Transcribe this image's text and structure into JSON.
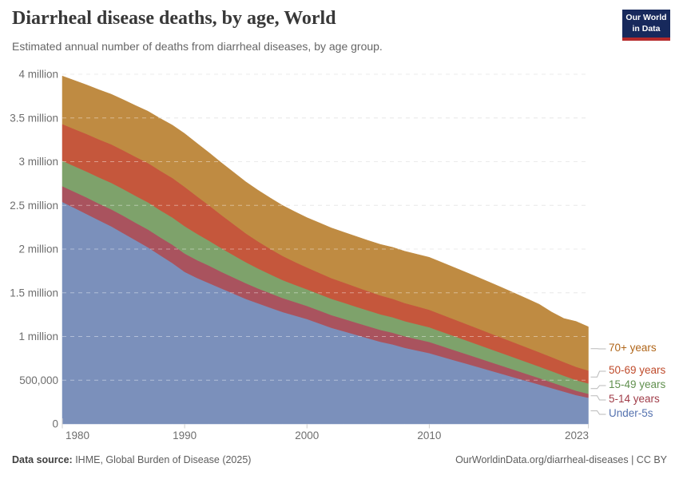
{
  "header": {
    "title": "Diarrheal disease deaths, by age, World",
    "subtitle": "Estimated annual number of deaths from diarrheal diseases, by age group.",
    "logo_line1": "Our World",
    "logo_line2": "in Data",
    "logo_bg_color": "#17295c",
    "logo_bar_color": "#b5292a"
  },
  "footer": {
    "source_label": "Data source:",
    "source_text": " IHME, Global Burden of Disease (2025)",
    "right_text": "OurWorldinData.org/diarrheal-diseases | CC BY"
  },
  "chart_data": {
    "type": "area",
    "stacked": true,
    "unit": "deaths per year (values in millions)",
    "ylim": [
      0,
      4
    ],
    "grid": "dashed-horizontal",
    "legend_position": "right",
    "x": [
      1980,
      1981,
      1982,
      1983,
      1984,
      1985,
      1986,
      1987,
      1988,
      1989,
      1990,
      1991,
      1992,
      1993,
      1994,
      1995,
      1996,
      1997,
      1998,
      1999,
      2000,
      2001,
      2002,
      2003,
      2004,
      2005,
      2006,
      2007,
      2008,
      2009,
      2010,
      2011,
      2012,
      2013,
      2014,
      2015,
      2016,
      2017,
      2018,
      2019,
      2020,
      2021,
      2022,
      2023
    ],
    "series": [
      {
        "name": "Under-5s",
        "color": "#7b90bb",
        "label_color": "#5572af",
        "values": [
          2.54,
          2.47,
          2.4,
          2.33,
          2.26,
          2.18,
          2.1,
          2.02,
          1.93,
          1.84,
          1.74,
          1.67,
          1.61,
          1.55,
          1.49,
          1.43,
          1.38,
          1.33,
          1.28,
          1.24,
          1.2,
          1.15,
          1.1,
          1.06,
          1.02,
          0.98,
          0.94,
          0.91,
          0.87,
          0.84,
          0.81,
          0.77,
          0.73,
          0.69,
          0.65,
          0.61,
          0.57,
          0.53,
          0.49,
          0.45,
          0.41,
          0.37,
          0.33,
          0.3
        ]
      },
      {
        "name": "5-14 years",
        "color": "#a9535e",
        "label_color": "#a03d49",
        "values": [
          0.18,
          0.185,
          0.19,
          0.19,
          0.195,
          0.2,
          0.2,
          0.205,
          0.205,
          0.21,
          0.21,
          0.205,
          0.2,
          0.19,
          0.185,
          0.18,
          0.17,
          0.165,
          0.16,
          0.155,
          0.15,
          0.148,
          0.145,
          0.143,
          0.14,
          0.138,
          0.136,
          0.134,
          0.132,
          0.13,
          0.128,
          0.122,
          0.116,
          0.11,
          0.104,
          0.098,
          0.092,
          0.086,
          0.08,
          0.074,
          0.066,
          0.058,
          0.05,
          0.045
        ]
      },
      {
        "name": "15-49 years",
        "color": "#7ea26b",
        "label_color": "#61904f",
        "values": [
          0.29,
          0.293,
          0.296,
          0.3,
          0.303,
          0.305,
          0.308,
          0.31,
          0.31,
          0.312,
          0.312,
          0.3,
          0.285,
          0.27,
          0.255,
          0.24,
          0.228,
          0.216,
          0.206,
          0.197,
          0.19,
          0.188,
          0.186,
          0.184,
          0.182,
          0.18,
          0.178,
          0.176,
          0.173,
          0.171,
          0.168,
          0.164,
          0.16,
          0.156,
          0.152,
          0.148,
          0.144,
          0.14,
          0.136,
          0.132,
          0.128,
          0.124,
          0.121,
          0.118
        ]
      },
      {
        "name": "50-69 years",
        "color": "#c5573c",
        "label_color": "#bf4b2b",
        "values": [
          0.42,
          0.425,
          0.43,
          0.435,
          0.44,
          0.443,
          0.447,
          0.45,
          0.452,
          0.452,
          0.45,
          0.43,
          0.405,
          0.38,
          0.355,
          0.33,
          0.31,
          0.292,
          0.276,
          0.262,
          0.25,
          0.243,
          0.237,
          0.231,
          0.226,
          0.221,
          0.216,
          0.212,
          0.208,
          0.204,
          0.2,
          0.196,
          0.192,
          0.188,
          0.184,
          0.18,
          0.176,
          0.172,
          0.168,
          0.164,
          0.16,
          0.156,
          0.152,
          0.148
        ]
      },
      {
        "name": "70+ years",
        "color": "#bf8b42",
        "label_color": "#b0661a",
        "values": [
          0.55,
          0.556,
          0.562,
          0.568,
          0.574,
          0.58,
          0.586,
          0.592,
          0.598,
          0.604,
          0.61,
          0.606,
          0.602,
          0.598,
          0.594,
          0.59,
          0.586,
          0.582,
          0.578,
          0.574,
          0.57,
          0.572,
          0.574,
          0.576,
          0.578,
          0.58,
          0.584,
          0.588,
          0.592,
          0.596,
          0.6,
          0.597,
          0.594,
          0.59,
          0.586,
          0.58,
          0.574,
          0.566,
          0.558,
          0.548,
          0.515,
          0.498,
          0.52,
          0.5
        ]
      }
    ],
    "y_ticks": [
      {
        "v": 0,
        "label": "0"
      },
      {
        "v": 0.5,
        "label": "500,000"
      },
      {
        "v": 1,
        "label": "1 million"
      },
      {
        "v": 1.5,
        "label": "1.5 million"
      },
      {
        "v": 2,
        "label": "2 million"
      },
      {
        "v": 2.5,
        "label": "2.5 million"
      },
      {
        "v": 3,
        "label": "3 million"
      },
      {
        "v": 3.5,
        "label": "3.5 million"
      },
      {
        "v": 4,
        "label": "4 million"
      }
    ],
    "x_ticks": [
      1980,
      1990,
      2000,
      2010,
      2023
    ]
  }
}
